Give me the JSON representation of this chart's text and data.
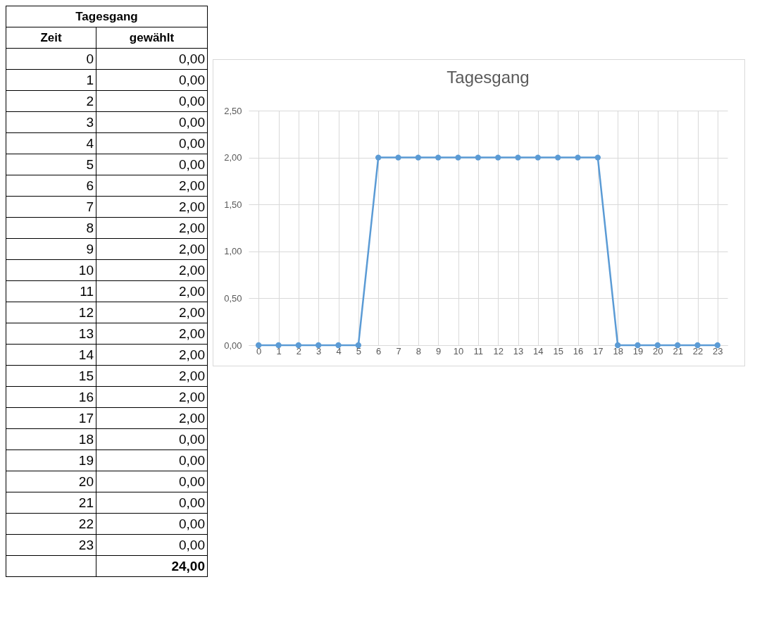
{
  "chart_data": {
    "type": "line",
    "title": "Tagesgang",
    "categories": [
      "0",
      "1",
      "2",
      "3",
      "4",
      "5",
      "6",
      "7",
      "8",
      "9",
      "10",
      "11",
      "12",
      "13",
      "14",
      "15",
      "16",
      "17",
      "18",
      "19",
      "20",
      "21",
      "22",
      "23"
    ],
    "series": [
      {
        "color": "#5b9bd5",
        "values": [
          0,
          0,
          0,
          0,
          0,
          0,
          2,
          2,
          2,
          2,
          2,
          2,
          2,
          2,
          2,
          2,
          2,
          2,
          0,
          0,
          0,
          0,
          0,
          0
        ]
      }
    ],
    "ylim": [
      0,
      2.5
    ],
    "yticks": [
      {
        "value": 0,
        "label": "0,00"
      },
      {
        "value": 0.5,
        "label": "0,50"
      },
      {
        "value": 1,
        "label": "1,00"
      },
      {
        "value": 1.5,
        "label": "1,50"
      },
      {
        "value": 2,
        "label": "2,00"
      },
      {
        "value": 2.5,
        "label": "2,50"
      }
    ],
    "grid": true,
    "marker": "circle",
    "line_style": "solid",
    "value_labels": [
      "0,00",
      "0,00",
      "0,00",
      "0,00",
      "0,00",
      "0,00",
      "2,00",
      "2,00",
      "2,00",
      "2,00",
      "2,00",
      "2,00",
      "2,00",
      "2,00",
      "2,00",
      "2,00",
      "2,00",
      "2,00",
      "0,00",
      "0,00",
      "0,00",
      "0,00",
      "0,00",
      "0,00"
    ],
    "annotations": [
      "Tagesgang",
      "Zeit",
      "gewählt",
      "24,00"
    ]
  }
}
